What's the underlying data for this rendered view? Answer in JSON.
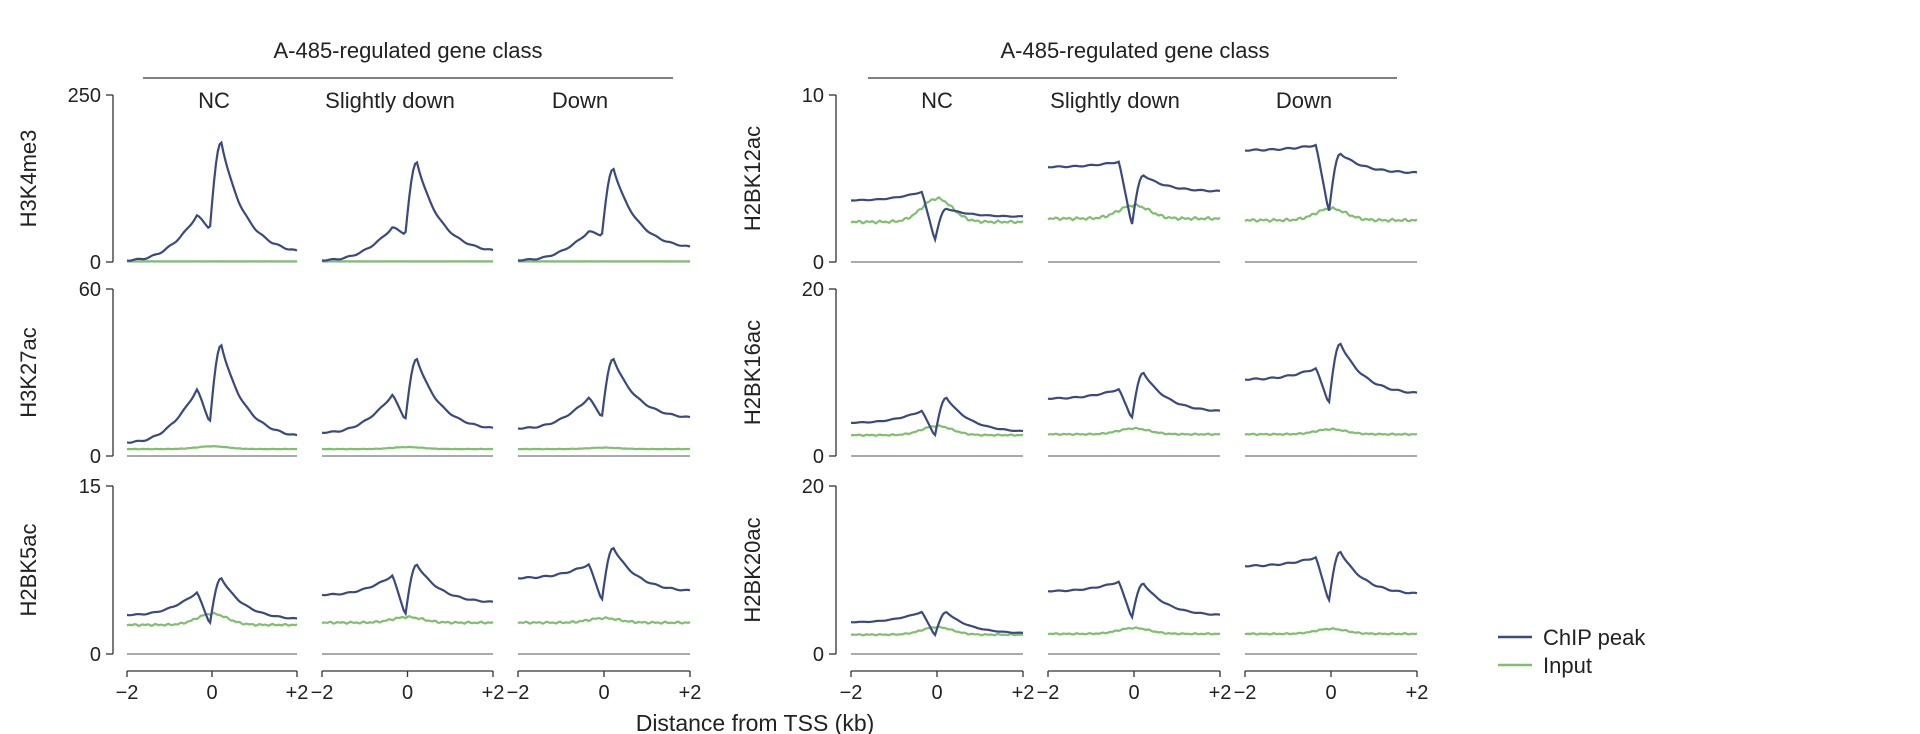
{
  "figure": {
    "xlabel": "Distance from TSS (kb)",
    "group_header": "A-485-regulated gene class",
    "column_labels": [
      "NC",
      "Slightly down",
      "Down"
    ],
    "x_tick_labels": [
      "−2",
      "0",
      "+2"
    ]
  },
  "legend": {
    "items": [
      {
        "label": "ChIP peak",
        "color": "#3b4a7e"
      },
      {
        "label": "Input",
        "color": "#7fbf6e"
      }
    ]
  },
  "colors": {
    "chip": "#3b4a7e",
    "input": "#7fbf6e",
    "axis": "#333333"
  },
  "chart_data": [
    {
      "type": "line",
      "mark": "H3K4me3",
      "ylabel": "H3K4me3",
      "ylim": [
        0,
        250
      ],
      "y_tick_labels": [
        "250",
        "0"
      ],
      "xlim": [
        -2,
        2
      ],
      "classes": [
        {
          "name": "NC",
          "chip": {
            "base_left": 3,
            "shoulder": 70,
            "dip": 50,
            "peak": 180,
            "right": 10
          },
          "input": {
            "level": 1,
            "bump": 1
          }
        },
        {
          "name": "Slightly down",
          "chip": {
            "base_left": 3,
            "shoulder": 52,
            "dip": 42,
            "peak": 150,
            "right": 12
          },
          "input": {
            "level": 1,
            "bump": 1
          }
        },
        {
          "name": "Down",
          "chip": {
            "base_left": 3,
            "shoulder": 46,
            "dip": 40,
            "peak": 140,
            "right": 18
          },
          "input": {
            "level": 1,
            "bump": 1
          }
        }
      ]
    },
    {
      "type": "line",
      "mark": "H3K27ac",
      "ylabel": "H3K27ac",
      "ylim": [
        0,
        60
      ],
      "y_tick_labels": [
        "60",
        "0"
      ],
      "xlim": [
        -2,
        2
      ],
      "classes": [
        {
          "name": "NC",
          "chip": {
            "base_left": 5,
            "shoulder": 24,
            "dip": 12,
            "peak": 40,
            "right": 6
          },
          "input": {
            "level": 2.5,
            "bump": 3.5
          }
        },
        {
          "name": "Slightly down",
          "chip": {
            "base_left": 8.5,
            "shoulder": 22,
            "dip": 13,
            "peak": 35,
            "right": 9
          },
          "input": {
            "level": 2.5,
            "bump": 3.2
          }
        },
        {
          "name": "Down",
          "chip": {
            "base_left": 10,
            "shoulder": 21,
            "dip": 14,
            "peak": 35,
            "right": 13
          },
          "input": {
            "level": 2.5,
            "bump": 3
          }
        }
      ]
    },
    {
      "type": "line",
      "mark": "H2BK5ac",
      "ylabel": "H2BK5ac",
      "ylim": [
        0,
        15
      ],
      "y_tick_labels": [
        "15",
        "0"
      ],
      "xlim": [
        -2,
        2
      ],
      "classes": [
        {
          "name": "NC",
          "chip": {
            "base_left": 3.5,
            "shoulder": 5.5,
            "dip": 2.7,
            "peak": 6.8,
            "right": 3
          },
          "input": {
            "level": 2.6,
            "bump": 3.6
          }
        },
        {
          "name": "Slightly down",
          "chip": {
            "base_left": 5.3,
            "shoulder": 7,
            "dip": 3.5,
            "peak": 8,
            "right": 4.5
          },
          "input": {
            "level": 2.8,
            "bump": 3.3
          }
        },
        {
          "name": "Down",
          "chip": {
            "base_left": 6.8,
            "shoulder": 8,
            "dip": 4.8,
            "peak": 9.5,
            "right": 5.5
          },
          "input": {
            "level": 2.8,
            "bump": 3.2
          }
        }
      ]
    },
    {
      "type": "line",
      "mark": "H2BK12ac",
      "ylabel": "H2BK12ac",
      "ylim": [
        0,
        10
      ],
      "y_tick_labels": [
        "10",
        "0"
      ],
      "xlim": [
        -2,
        2
      ],
      "classes": [
        {
          "name": "NC",
          "chip": {
            "base_left": 3.7,
            "shoulder": 4.2,
            "dip": 1.3,
            "peak": 3.2,
            "right": 2.7
          },
          "input": {
            "level": 2.4,
            "bump": 3.8
          }
        },
        {
          "name": "Slightly down",
          "chip": {
            "base_left": 5.7,
            "shoulder": 6,
            "dip": 2.2,
            "peak": 5.2,
            "right": 4.2
          },
          "input": {
            "level": 2.6,
            "bump": 3.4
          }
        },
        {
          "name": "Down",
          "chip": {
            "base_left": 6.7,
            "shoulder": 7,
            "dip": 3,
            "peak": 6.5,
            "right": 5.3
          },
          "input": {
            "level": 2.5,
            "bump": 3.2
          }
        }
      ]
    },
    {
      "type": "line",
      "mark": "H2BK16ac",
      "ylabel": "H2BK16ac",
      "ylim": [
        0,
        20
      ],
      "y_tick_labels": [
        "20",
        "0"
      ],
      "xlim": [
        -2,
        2
      ],
      "classes": [
        {
          "name": "NC",
          "chip": {
            "base_left": 4,
            "shoulder": 5.4,
            "dip": 2.4,
            "peak": 7,
            "right": 2.8
          },
          "input": {
            "level": 2.5,
            "bump": 3.6
          }
        },
        {
          "name": "Slightly down",
          "chip": {
            "base_left": 6.9,
            "shoulder": 8,
            "dip": 4.5,
            "peak": 10,
            "right": 5.2
          },
          "input": {
            "level": 2.6,
            "bump": 3.3
          }
        },
        {
          "name": "Down",
          "chip": {
            "base_left": 9.2,
            "shoulder": 10.5,
            "dip": 6.3,
            "peak": 13.5,
            "right": 7.3
          },
          "input": {
            "level": 2.6,
            "bump": 3.2
          }
        }
      ]
    },
    {
      "type": "line",
      "mark": "H2BK20ac",
      "ylabel": "H2BK20ac",
      "ylim": [
        0,
        20
      ],
      "y_tick_labels": [
        "20",
        "0"
      ],
      "xlim": [
        -2,
        2
      ],
      "classes": [
        {
          "name": "NC",
          "chip": {
            "base_left": 3.8,
            "shoulder": 5,
            "dip": 2.2,
            "peak": 5,
            "right": 2.4
          },
          "input": {
            "level": 2.3,
            "bump": 3.2
          }
        },
        {
          "name": "Slightly down",
          "chip": {
            "base_left": 7.5,
            "shoulder": 8.6,
            "dip": 4.3,
            "peak": 8.4,
            "right": 4.5
          },
          "input": {
            "level": 2.4,
            "bump": 3.1
          }
        },
        {
          "name": "Down",
          "chip": {
            "base_left": 10.5,
            "shoulder": 11.5,
            "dip": 6.3,
            "peak": 12.2,
            "right": 7
          },
          "input": {
            "level": 2.4,
            "bump": 3
          }
        }
      ]
    }
  ]
}
